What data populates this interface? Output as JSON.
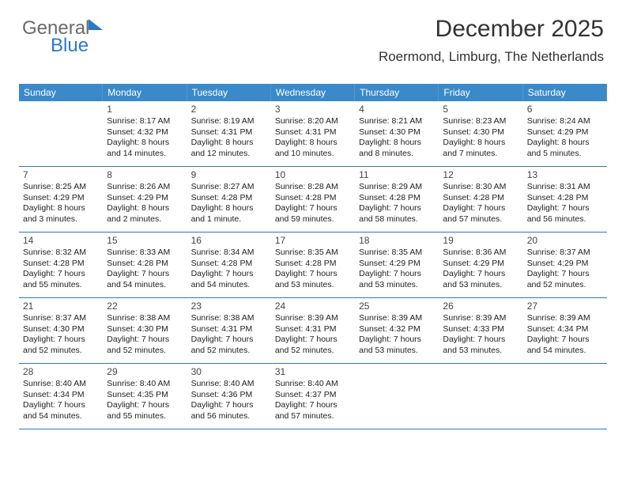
{
  "brand": {
    "part1": "General",
    "part2": "Blue"
  },
  "header": {
    "month_title": "December 2025",
    "location": "Roermond, Limburg, The Netherlands"
  },
  "style": {
    "header_bg": "#3b89c9",
    "header_text": "#ffffff",
    "row_border": "#2e78c0",
    "page_bg": "#ffffff",
    "body_text": "#222222",
    "title_color": "#333333",
    "brand_gray": "#6a6a6a",
    "brand_blue": "#2e78c0",
    "title_fontsize_pt": 22,
    "location_fontsize_pt": 13,
    "header_fontsize_pt": 9,
    "cell_fontsize_pt": 8
  },
  "day_headers": [
    "Sunday",
    "Monday",
    "Tuesday",
    "Wednesday",
    "Thursday",
    "Friday",
    "Saturday"
  ],
  "weeks": [
    [
      {
        "n": "",
        "sr": "",
        "ss": "",
        "dl": ""
      },
      {
        "n": "1",
        "sr": "Sunrise: 8:17 AM",
        "ss": "Sunset: 4:32 PM",
        "dl": "Daylight: 8 hours and 14 minutes."
      },
      {
        "n": "2",
        "sr": "Sunrise: 8:19 AM",
        "ss": "Sunset: 4:31 PM",
        "dl": "Daylight: 8 hours and 12 minutes."
      },
      {
        "n": "3",
        "sr": "Sunrise: 8:20 AM",
        "ss": "Sunset: 4:31 PM",
        "dl": "Daylight: 8 hours and 10 minutes."
      },
      {
        "n": "4",
        "sr": "Sunrise: 8:21 AM",
        "ss": "Sunset: 4:30 PM",
        "dl": "Daylight: 8 hours and 8 minutes."
      },
      {
        "n": "5",
        "sr": "Sunrise: 8:23 AM",
        "ss": "Sunset: 4:30 PM",
        "dl": "Daylight: 8 hours and 7 minutes."
      },
      {
        "n": "6",
        "sr": "Sunrise: 8:24 AM",
        "ss": "Sunset: 4:29 PM",
        "dl": "Daylight: 8 hours and 5 minutes."
      }
    ],
    [
      {
        "n": "7",
        "sr": "Sunrise: 8:25 AM",
        "ss": "Sunset: 4:29 PM",
        "dl": "Daylight: 8 hours and 3 minutes."
      },
      {
        "n": "8",
        "sr": "Sunrise: 8:26 AM",
        "ss": "Sunset: 4:29 PM",
        "dl": "Daylight: 8 hours and 2 minutes."
      },
      {
        "n": "9",
        "sr": "Sunrise: 8:27 AM",
        "ss": "Sunset: 4:28 PM",
        "dl": "Daylight: 8 hours and 1 minute."
      },
      {
        "n": "10",
        "sr": "Sunrise: 8:28 AM",
        "ss": "Sunset: 4:28 PM",
        "dl": "Daylight: 7 hours and 59 minutes."
      },
      {
        "n": "11",
        "sr": "Sunrise: 8:29 AM",
        "ss": "Sunset: 4:28 PM",
        "dl": "Daylight: 7 hours and 58 minutes."
      },
      {
        "n": "12",
        "sr": "Sunrise: 8:30 AM",
        "ss": "Sunset: 4:28 PM",
        "dl": "Daylight: 7 hours and 57 minutes."
      },
      {
        "n": "13",
        "sr": "Sunrise: 8:31 AM",
        "ss": "Sunset: 4:28 PM",
        "dl": "Daylight: 7 hours and 56 minutes."
      }
    ],
    [
      {
        "n": "14",
        "sr": "Sunrise: 8:32 AM",
        "ss": "Sunset: 4:28 PM",
        "dl": "Daylight: 7 hours and 55 minutes."
      },
      {
        "n": "15",
        "sr": "Sunrise: 8:33 AM",
        "ss": "Sunset: 4:28 PM",
        "dl": "Daylight: 7 hours and 54 minutes."
      },
      {
        "n": "16",
        "sr": "Sunrise: 8:34 AM",
        "ss": "Sunset: 4:28 PM",
        "dl": "Daylight: 7 hours and 54 minutes."
      },
      {
        "n": "17",
        "sr": "Sunrise: 8:35 AM",
        "ss": "Sunset: 4:28 PM",
        "dl": "Daylight: 7 hours and 53 minutes."
      },
      {
        "n": "18",
        "sr": "Sunrise: 8:35 AM",
        "ss": "Sunset: 4:29 PM",
        "dl": "Daylight: 7 hours and 53 minutes."
      },
      {
        "n": "19",
        "sr": "Sunrise: 8:36 AM",
        "ss": "Sunset: 4:29 PM",
        "dl": "Daylight: 7 hours and 53 minutes."
      },
      {
        "n": "20",
        "sr": "Sunrise: 8:37 AM",
        "ss": "Sunset: 4:29 PM",
        "dl": "Daylight: 7 hours and 52 minutes."
      }
    ],
    [
      {
        "n": "21",
        "sr": "Sunrise: 8:37 AM",
        "ss": "Sunset: 4:30 PM",
        "dl": "Daylight: 7 hours and 52 minutes."
      },
      {
        "n": "22",
        "sr": "Sunrise: 8:38 AM",
        "ss": "Sunset: 4:30 PM",
        "dl": "Daylight: 7 hours and 52 minutes."
      },
      {
        "n": "23",
        "sr": "Sunrise: 8:38 AM",
        "ss": "Sunset: 4:31 PM",
        "dl": "Daylight: 7 hours and 52 minutes."
      },
      {
        "n": "24",
        "sr": "Sunrise: 8:39 AM",
        "ss": "Sunset: 4:31 PM",
        "dl": "Daylight: 7 hours and 52 minutes."
      },
      {
        "n": "25",
        "sr": "Sunrise: 8:39 AM",
        "ss": "Sunset: 4:32 PM",
        "dl": "Daylight: 7 hours and 53 minutes."
      },
      {
        "n": "26",
        "sr": "Sunrise: 8:39 AM",
        "ss": "Sunset: 4:33 PM",
        "dl": "Daylight: 7 hours and 53 minutes."
      },
      {
        "n": "27",
        "sr": "Sunrise: 8:39 AM",
        "ss": "Sunset: 4:34 PM",
        "dl": "Daylight: 7 hours and 54 minutes."
      }
    ],
    [
      {
        "n": "28",
        "sr": "Sunrise: 8:40 AM",
        "ss": "Sunset: 4:34 PM",
        "dl": "Daylight: 7 hours and 54 minutes."
      },
      {
        "n": "29",
        "sr": "Sunrise: 8:40 AM",
        "ss": "Sunset: 4:35 PM",
        "dl": "Daylight: 7 hours and 55 minutes."
      },
      {
        "n": "30",
        "sr": "Sunrise: 8:40 AM",
        "ss": "Sunset: 4:36 PM",
        "dl": "Daylight: 7 hours and 56 minutes."
      },
      {
        "n": "31",
        "sr": "Sunrise: 8:40 AM",
        "ss": "Sunset: 4:37 PM",
        "dl": "Daylight: 7 hours and 57 minutes."
      },
      {
        "n": "",
        "sr": "",
        "ss": "",
        "dl": ""
      },
      {
        "n": "",
        "sr": "",
        "ss": "",
        "dl": ""
      },
      {
        "n": "",
        "sr": "",
        "ss": "",
        "dl": ""
      }
    ]
  ]
}
